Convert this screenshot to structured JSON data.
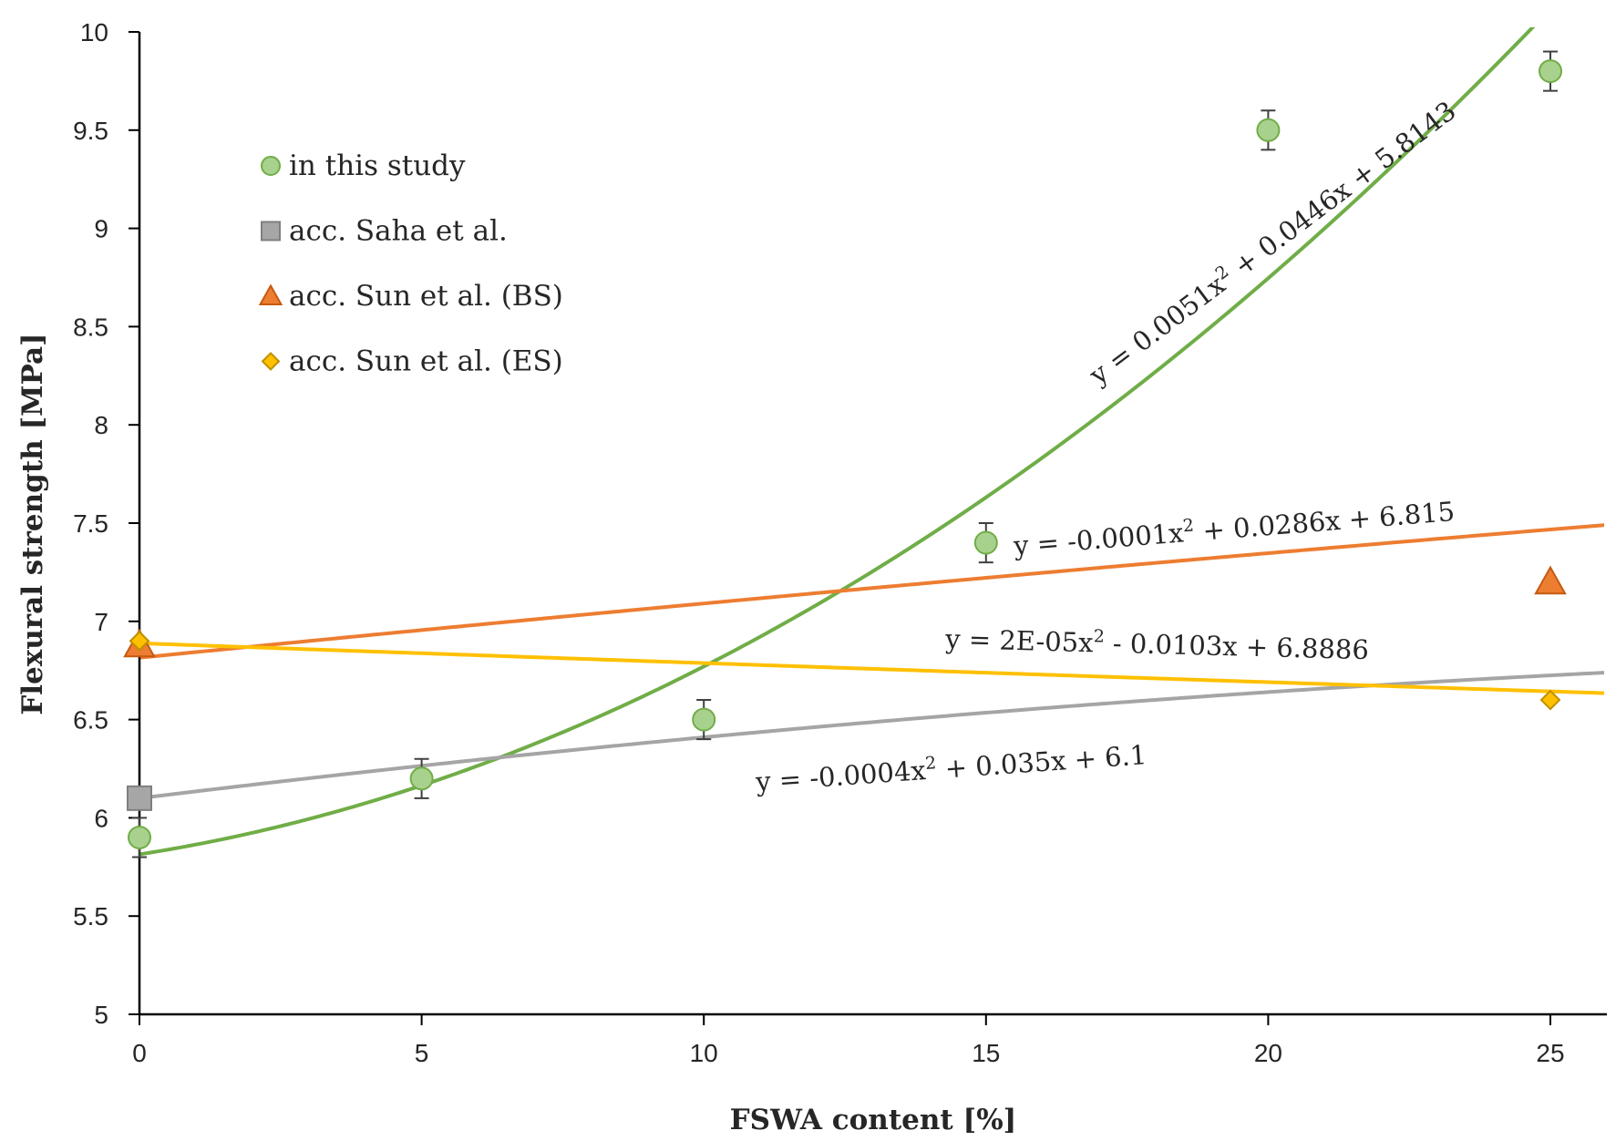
{
  "chart_data": {
    "type": "scatter",
    "xlabel": "FSWA content [%]",
    "ylabel": "Flexural strength [MPa]",
    "xlim": [
      0,
      26
    ],
    "ylim": [
      5,
      10
    ],
    "x_ticks": [
      0,
      5,
      10,
      15,
      20,
      25
    ],
    "y_ticks": [
      5,
      5.5,
      6,
      6.5,
      7,
      7.5,
      8,
      8.5,
      9,
      9.5,
      10
    ],
    "grid": false,
    "legend_position": "top-left",
    "series": [
      {
        "name": "in this study",
        "marker": "circle",
        "color": "#a9d18e",
        "edge_color": "#70ad47",
        "line_color": "#70ad47",
        "x": [
          0,
          5,
          10,
          15,
          20,
          25
        ],
        "y": [
          5.9,
          6.2,
          6.5,
          7.4,
          9.5,
          9.8
        ],
        "error": [
          0.1,
          0.1,
          0.1,
          0.1,
          0.1,
          0.1
        ],
        "trendline": {
          "a": 0.0051,
          "b": 0.0446,
          "c": 5.8143,
          "equation_a": "y = 0.0051x",
          "equation_b": " + 0.0446x + 5.8143"
        }
      },
      {
        "name": "acc. Saha et al.",
        "marker": "square",
        "color": "#a6a6a6",
        "edge_color": "#7f7f7f",
        "line_color": "#a5a5a5",
        "x": [
          0
        ],
        "y": [
          6.1
        ],
        "trendline": {
          "a": -0.0004,
          "b": 0.035,
          "c": 6.1,
          "equation_a": "y = -0.0004x",
          "equation_b": " + 0.035x + 6.1"
        }
      },
      {
        "name": "acc. Sun et al. (BS)",
        "marker": "triangle",
        "color": "#ed7d31",
        "edge_color": "#c55a11",
        "line_color": "#ed7d31",
        "x": [
          0,
          25
        ],
        "y": [
          6.88,
          7.2
        ],
        "trendline": {
          "a": -0.0001,
          "b": 0.0286,
          "c": 6.815,
          "equation_a": "y = -0.0001x",
          "equation_b": " + 0.0286x + 6.815"
        }
      },
      {
        "name": "acc. Sun et al. (ES)",
        "marker": "diamond",
        "color": "#ffc000",
        "edge_color": "#bf9000",
        "line_color": "#ffc000",
        "x": [
          0,
          25
        ],
        "y": [
          6.9,
          6.6
        ],
        "trendline": {
          "a": 2e-05,
          "b": -0.0103,
          "c": 6.8886,
          "equation_a": "y = 2E-05x",
          "equation_b": " - 0.0103x + 6.8886"
        }
      }
    ]
  }
}
